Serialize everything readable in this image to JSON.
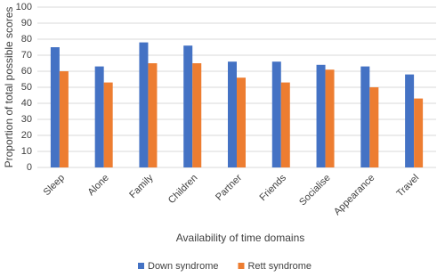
{
  "chart_data": {
    "type": "bar",
    "x_label": "Availability of time domains",
    "y_label": "Proportion of total possible scores",
    "categories": [
      "Sleep",
      "Alone",
      "Family",
      "Children",
      "Partner",
      "Friends",
      "Socialise",
      "Appearance",
      "Travel"
    ],
    "series": [
      {
        "name": "Down syndrome",
        "color": "#4472c4",
        "values": [
          75,
          63,
          78,
          76,
          66,
          66,
          64,
          63,
          58
        ]
      },
      {
        "name": "Rett syndrome",
        "color": "#ed7d31",
        "values": [
          60,
          53,
          65,
          65,
          56,
          53,
          61,
          50,
          43
        ]
      }
    ],
    "ylim": [
      0,
      100
    ],
    "yticks": [
      0,
      10,
      20,
      30,
      40,
      50,
      60,
      70,
      80,
      90,
      100
    ],
    "grid": true,
    "legend": "bottom"
  }
}
